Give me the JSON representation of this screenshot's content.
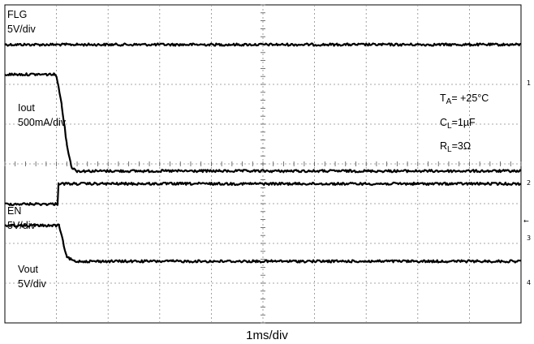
{
  "chart_data": {
    "type": "line",
    "title": "",
    "xlabel": "1ms/div",
    "ylabel": "",
    "grid": true,
    "x_divisions": 10,
    "y_divisions": 8,
    "x_range_ms": [
      0,
      10
    ],
    "traces": [
      {
        "label": "FLG",
        "scale": "5V/div",
        "marker": "1",
        "points": [
          [
            0,
            7.0
          ],
          [
            10,
            7.0
          ]
        ]
      },
      {
        "label": "Iout",
        "scale": "500mA/div",
        "marker": "2",
        "points": [
          [
            0,
            6.25
          ],
          [
            0.95,
            6.25
          ],
          [
            1.0,
            6.22
          ],
          [
            1.1,
            5.5
          ],
          [
            1.2,
            4.5
          ],
          [
            1.27,
            4.05
          ],
          [
            1.3,
            3.9
          ],
          [
            1.4,
            3.82
          ],
          [
            10,
            3.82
          ]
        ]
      },
      {
        "label": "EN",
        "scale": "5V/div",
        "marker": "3",
        "points": [
          [
            0,
            2.99
          ],
          [
            1.02,
            2.99
          ],
          [
            1.04,
            3.5
          ],
          [
            10,
            3.5
          ]
        ]
      },
      {
        "label": "Vout",
        "scale": "5V/div",
        "marker": "4",
        "points": [
          [
            0,
            2.45
          ],
          [
            1.05,
            2.45
          ],
          [
            1.2,
            1.65
          ],
          [
            1.35,
            1.55
          ],
          [
            10,
            1.55
          ]
        ]
      }
    ],
    "annotations": [
      {
        "base": "T",
        "sub": "A",
        "rest": "= +25°C"
      },
      {
        "base": "C",
        "sub": "L",
        "rest": "=1µF"
      },
      {
        "base": "R",
        "sub": "L",
        "rest": "=3Ω"
      }
    ],
    "right_markers": [
      "1",
      "2",
      "←",
      "3",
      "4"
    ]
  }
}
